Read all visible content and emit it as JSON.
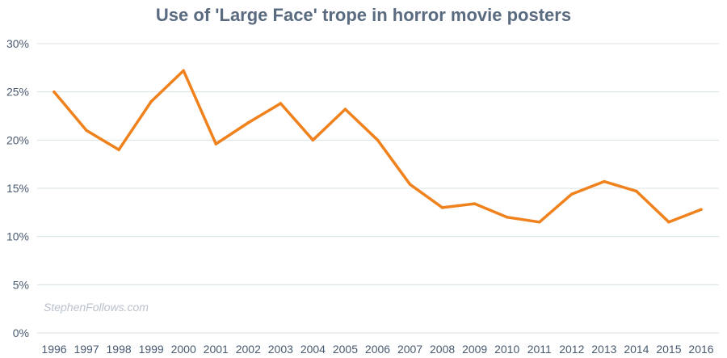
{
  "chart_data": {
    "type": "line",
    "title": "Use of 'Large Face' trope in horror movie posters",
    "xlabel": "",
    "ylabel": "",
    "x": [
      "1996",
      "1997",
      "1998",
      "1999",
      "2000",
      "2001",
      "2002",
      "2003",
      "2004",
      "2005",
      "2006",
      "2007",
      "2008",
      "2009",
      "2010",
      "2011",
      "2012",
      "2013",
      "2014",
      "2015",
      "2016"
    ],
    "series": [
      {
        "values": [
          25.0,
          21.0,
          19.0,
          24.0,
          27.2,
          19.6,
          21.8,
          23.8,
          20.0,
          23.2,
          20.0,
          15.4,
          13.0,
          13.4,
          12.0,
          11.5,
          14.4,
          15.7,
          14.7,
          11.5,
          12.8
        ]
      }
    ],
    "ylim": [
      0,
      30
    ],
    "y_ticks": [
      "0%",
      "5%",
      "10%",
      "15%",
      "20%",
      "25%",
      "30%"
    ],
    "grid": true,
    "line_color": "#f0821e",
    "grid_color": "#d8e2e2",
    "title_color": "#5a6b80",
    "watermark": "StephenFollows.com"
  }
}
